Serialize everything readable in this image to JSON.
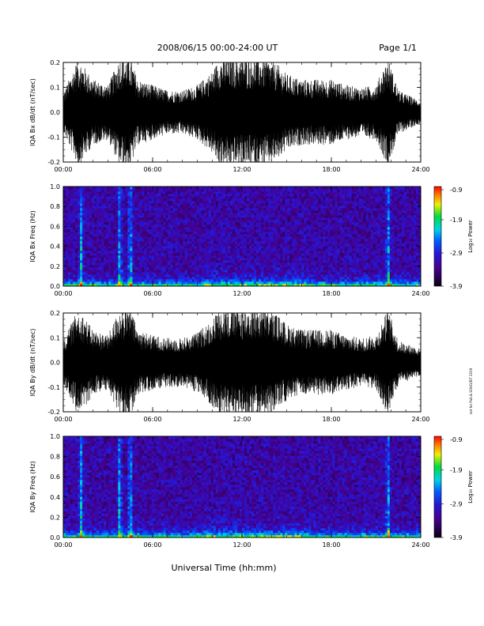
{
  "header": {
    "title": "2008/06/15  00:00-24:00 UT",
    "page": "Page 1/1"
  },
  "xlabel": "Universal Time (hh:mm)",
  "side_note": "not for Pub & SOHO/EIT 2019",
  "colorbar": {
    "label": "Log₁₀ Power",
    "ticks": [
      "-0.9",
      "-1.9",
      "-2.9",
      "-3.9"
    ]
  },
  "chart_data": [
    {
      "type": "line",
      "ylabel": "IQA Bx dB/dt (nT/sec)",
      "x_ticks": [
        "00:00",
        "06:00",
        "12:00",
        "18:00",
        "24:00"
      ],
      "y_ticks": [
        "-0.2",
        "-0.1",
        "0.0",
        "0.1",
        "0.2"
      ],
      "xlim": [
        0,
        24
      ],
      "ylim": [
        -0.2,
        0.2
      ],
      "x_unit": "hours UT",
      "envelope": [
        [
          0,
          0.07
        ],
        [
          1,
          0.2
        ],
        [
          2,
          0.12
        ],
        [
          3,
          0.1
        ],
        [
          3.8,
          0.2
        ],
        [
          4.5,
          0.2
        ],
        [
          5,
          0.12
        ],
        [
          6,
          0.1
        ],
        [
          7,
          0.08
        ],
        [
          8,
          0.08
        ],
        [
          9,
          0.1
        ],
        [
          10,
          0.15
        ],
        [
          10.5,
          0.2
        ],
        [
          12,
          0.2
        ],
        [
          13.5,
          0.2
        ],
        [
          14.5,
          0.17
        ],
        [
          15,
          0.14
        ],
        [
          16,
          0.12
        ],
        [
          18,
          0.12
        ],
        [
          19,
          0.1
        ],
        [
          20,
          0.09
        ],
        [
          21,
          0.1
        ],
        [
          21.8,
          0.2
        ],
        [
          22.5,
          0.08
        ],
        [
          24,
          0.04
        ]
      ]
    },
    {
      "type": "heatmap",
      "ylabel": "IQA Bx Freq (Hz)",
      "x_ticks": [
        "00:00",
        "06:00",
        "12:00",
        "18:00",
        "24:00"
      ],
      "y_ticks": [
        "0.0",
        "0.2",
        "0.4",
        "0.6",
        "0.8",
        "1.0"
      ],
      "xlim": [
        0,
        24
      ],
      "ylim": [
        0,
        1.0
      ],
      "zlim": [
        -3.9,
        -0.9
      ],
      "bursts_hours": [
        1.2,
        3.8,
        4.5,
        21.8
      ]
    },
    {
      "type": "line",
      "ylabel": "IQA By dB/dt (nT/sec)",
      "x_ticks": [
        "00:00",
        "06:00",
        "12:00",
        "18:00",
        "24:00"
      ],
      "y_ticks": [
        "-0.2",
        "-0.1",
        "0.0",
        "0.1",
        "0.2"
      ],
      "xlim": [
        0,
        24
      ],
      "ylim": [
        -0.2,
        0.2
      ],
      "x_unit": "hours UT",
      "envelope": [
        [
          0,
          0.08
        ],
        [
          1,
          0.2
        ],
        [
          2,
          0.12
        ],
        [
          3,
          0.1
        ],
        [
          3.8,
          0.2
        ],
        [
          4.5,
          0.2
        ],
        [
          5,
          0.12
        ],
        [
          6,
          0.1
        ],
        [
          7,
          0.09
        ],
        [
          8,
          0.09
        ],
        [
          9,
          0.11
        ],
        [
          10,
          0.16
        ],
        [
          10.5,
          0.2
        ],
        [
          12,
          0.2
        ],
        [
          13.5,
          0.2
        ],
        [
          14.5,
          0.17
        ],
        [
          15,
          0.14
        ],
        [
          16,
          0.12
        ],
        [
          18,
          0.12
        ],
        [
          19,
          0.1
        ],
        [
          20,
          0.09
        ],
        [
          21,
          0.1
        ],
        [
          21.8,
          0.2
        ],
        [
          22.5,
          0.08
        ],
        [
          24,
          0.05
        ]
      ]
    },
    {
      "type": "heatmap",
      "ylabel": "IQA By Freq (Hz)",
      "x_ticks": [
        "00:00",
        "06:00",
        "12:00",
        "18:00",
        "24:00"
      ],
      "y_ticks": [
        "0.0",
        "0.2",
        "0.4",
        "0.6",
        "0.8",
        "1.0"
      ],
      "xlim": [
        0,
        24
      ],
      "ylim": [
        0,
        1.0
      ],
      "zlim": [
        -3.9,
        -0.9
      ],
      "bursts_hours": [
        1.2,
        3.8,
        4.5,
        21.8
      ]
    }
  ]
}
